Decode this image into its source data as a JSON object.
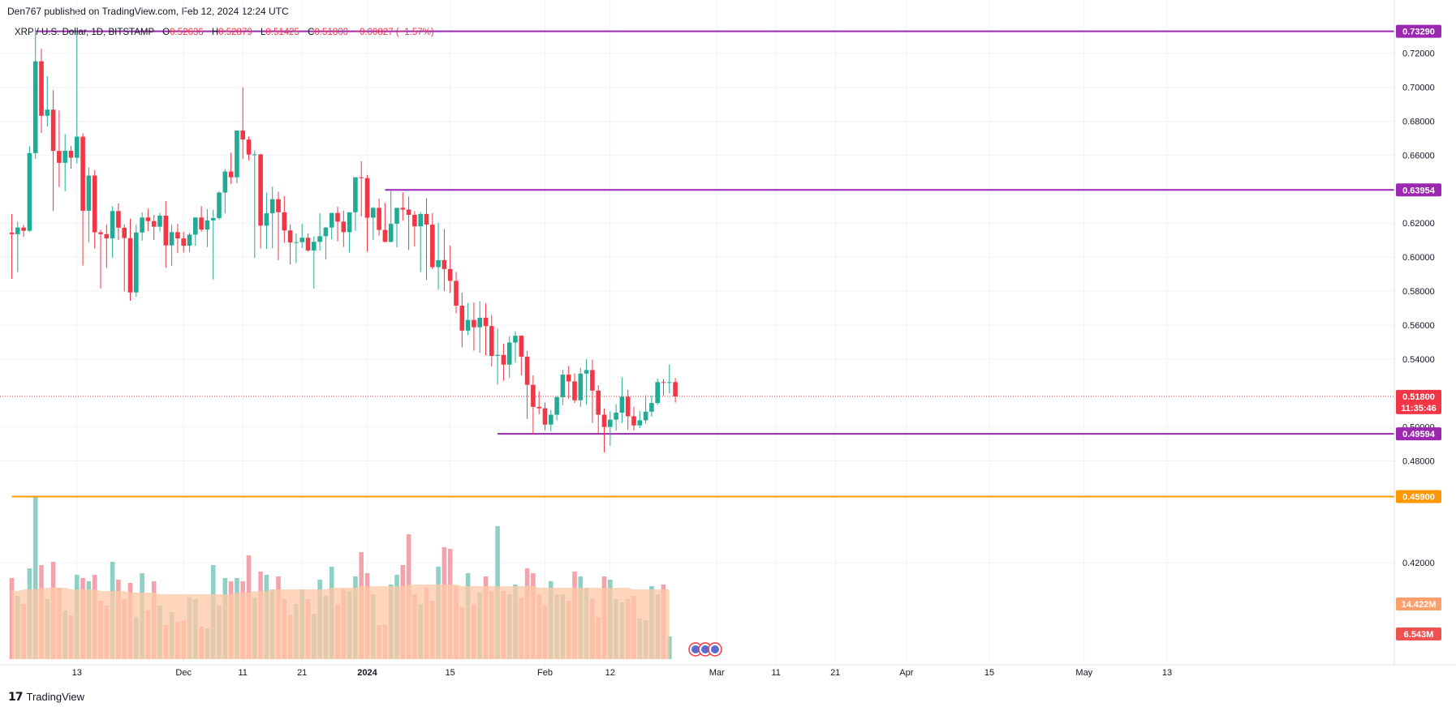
{
  "header": {
    "publisher_line": "Den767 published on TradingView.com, Feb 12, 2024 12:24 UTC"
  },
  "legend": {
    "symbol": "XRP / U.S. Dollar, 1D, BITSTAMP",
    "open_label": "O",
    "open": "0.52636",
    "high_label": "H",
    "high": "0.52879",
    "low_label": "L",
    "low": "0.51425",
    "close_label": "C",
    "close": "0.51800",
    "change": "−0.00827 (−1.57%)"
  },
  "footer": {
    "brand": "TradingView"
  },
  "colors": {
    "up": "#22ab94",
    "down": "#f23645",
    "level": "#9c27b0",
    "support": "#ff9800",
    "volume_up": "#8fd0c6",
    "volume_down": "#f5a3aa",
    "volume_ma": "#ffc8a6"
  },
  "chart_data": {
    "type": "candlestick",
    "x_ticks": [
      "13",
      "Dec",
      "11",
      "21",
      "2024",
      "15",
      "Feb",
      "12",
      "Mar",
      "11",
      "21",
      "Apr",
      "15",
      "May",
      "13"
    ],
    "y_ticks": [
      "0.72000",
      "0.70000",
      "0.68000",
      "0.66000",
      "0.62000",
      "0.60000",
      "0.58000",
      "0.56000",
      "0.54000",
      "0.50000",
      "0.48000",
      "0.42000"
    ],
    "ylim": [
      0.412,
      0.738
    ],
    "price_tags": {
      "top_level": "0.73290",
      "upper_level": "0.63954",
      "current_price": "0.51800",
      "countdown": "11:35:46",
      "lower_level": "0.49594",
      "support_level": "0.45900",
      "volume_ma": "14.422M",
      "volume_last": "6.543M"
    },
    "levels": [
      {
        "price": 0.7329,
        "start_day": 4
      },
      {
        "price": 0.63954,
        "start_day": 63
      },
      {
        "price": 0.49594,
        "start_day": 82
      },
      {
        "price": 0.459,
        "start_day": 0
      }
    ],
    "candles_ohlc": [
      [
        0.6144,
        0.6254,
        0.5873,
        0.6135
      ],
      [
        0.6135,
        0.6208,
        0.5912,
        0.6174
      ],
      [
        0.6174,
        0.619,
        0.612,
        0.6155
      ],
      [
        0.6155,
        0.6652,
        0.615,
        0.6612
      ],
      [
        0.6612,
        0.735,
        0.658,
        0.7153
      ],
      [
        0.7153,
        0.7226,
        0.673,
        0.6832
      ],
      [
        0.6832,
        0.7065,
        0.6768,
        0.6868
      ],
      [
        0.6868,
        0.6983,
        0.6271,
        0.6625
      ],
      [
        0.6625,
        0.6863,
        0.6412,
        0.6555
      ],
      [
        0.6555,
        0.6724,
        0.6388,
        0.6626
      ],
      [
        0.6626,
        0.6654,
        0.652,
        0.6585
      ],
      [
        0.6585,
        0.7335,
        0.6551,
        0.6709
      ],
      [
        0.6709,
        0.6728,
        0.595,
        0.6273
      ],
      [
        0.6273,
        0.6528,
        0.6087,
        0.648
      ],
      [
        0.648,
        0.6512,
        0.605,
        0.6146
      ],
      [
        0.6146,
        0.6161,
        0.5816,
        0.6135
      ],
      [
        0.6135,
        0.6192,
        0.5937,
        0.611
      ],
      [
        0.611,
        0.6299,
        0.5996,
        0.6271
      ],
      [
        0.6271,
        0.6316,
        0.61,
        0.6173
      ],
      [
        0.6173,
        0.6193,
        0.5798,
        0.6112
      ],
      [
        0.6112,
        0.6226,
        0.5743,
        0.5792
      ],
      [
        0.5792,
        0.6191,
        0.5767,
        0.6145
      ],
      [
        0.6145,
        0.6264,
        0.6097,
        0.6233
      ],
      [
        0.6233,
        0.6286,
        0.6152,
        0.6212
      ],
      [
        0.6212,
        0.6249,
        0.6101,
        0.6179
      ],
      [
        0.6179,
        0.626,
        0.6149,
        0.6244
      ],
      [
        0.6244,
        0.633,
        0.5937,
        0.6069
      ],
      [
        0.6069,
        0.619,
        0.5947,
        0.6147
      ],
      [
        0.6147,
        0.6195,
        0.6023,
        0.611
      ],
      [
        0.611,
        0.6149,
        0.6027,
        0.6067
      ],
      [
        0.6067,
        0.6143,
        0.603,
        0.6132
      ],
      [
        0.6132,
        0.6235,
        0.6066,
        0.6233
      ],
      [
        0.6233,
        0.63,
        0.6149,
        0.6162
      ],
      [
        0.6162,
        0.6282,
        0.6059,
        0.6216
      ],
      [
        0.6216,
        0.6279,
        0.5868,
        0.623
      ],
      [
        0.623,
        0.6388,
        0.6221,
        0.638
      ],
      [
        0.638,
        0.6518,
        0.6257,
        0.6504
      ],
      [
        0.6504,
        0.6614,
        0.6431,
        0.647
      ],
      [
        0.647,
        0.6706,
        0.6434,
        0.6745
      ],
      [
        0.6745,
        0.7,
        0.6577,
        0.6692
      ],
      [
        0.6692,
        0.6709,
        0.6569,
        0.6604
      ],
      [
        0.6604,
        0.6628,
        0.5995,
        0.6605
      ],
      [
        0.6605,
        0.6608,
        0.6051,
        0.6185
      ],
      [
        0.6185,
        0.6379,
        0.6048,
        0.6258
      ],
      [
        0.6258,
        0.6415,
        0.6052,
        0.6341
      ],
      [
        0.6341,
        0.6385,
        0.5982,
        0.6264
      ],
      [
        0.6264,
        0.6359,
        0.6085,
        0.6157
      ],
      [
        0.6157,
        0.6193,
        0.5957,
        0.6086
      ],
      [
        0.6086,
        0.614,
        0.5964,
        0.6088
      ],
      [
        0.6088,
        0.6195,
        0.6053,
        0.6114
      ],
      [
        0.6114,
        0.6139,
        0.6033,
        0.6039
      ],
      [
        0.6039,
        0.6121,
        0.5815,
        0.609
      ],
      [
        0.609,
        0.6258,
        0.6039,
        0.6123
      ],
      [
        0.6123,
        0.6178,
        0.5985,
        0.6174
      ],
      [
        0.6174,
        0.6234,
        0.6104,
        0.626
      ],
      [
        0.626,
        0.6297,
        0.6093,
        0.6209
      ],
      [
        0.6209,
        0.6274,
        0.606,
        0.6147
      ],
      [
        0.6147,
        0.6255,
        0.6028,
        0.6264
      ],
      [
        0.6264,
        0.6406,
        0.6154,
        0.647
      ],
      [
        0.647,
        0.6564,
        0.6239,
        0.6465
      ],
      [
        0.6465,
        0.6484,
        0.6032,
        0.6232
      ],
      [
        0.6232,
        0.6295,
        0.6102,
        0.629
      ],
      [
        0.629,
        0.6345,
        0.6126,
        0.616
      ],
      [
        0.616,
        0.6318,
        0.6087,
        0.609
      ],
      [
        0.609,
        0.639,
        0.6087,
        0.6196
      ],
      [
        0.6196,
        0.6281,
        0.6058,
        0.629
      ],
      [
        0.629,
        0.6382,
        0.6214,
        0.628
      ],
      [
        0.628,
        0.6357,
        0.6041,
        0.6249
      ],
      [
        0.6249,
        0.6271,
        0.6062,
        0.6181
      ],
      [
        0.6181,
        0.6266,
        0.5912,
        0.6254
      ],
      [
        0.6254,
        0.6346,
        0.5866,
        0.6191
      ],
      [
        0.6191,
        0.6258,
        0.5929,
        0.5941
      ],
      [
        0.5941,
        0.6201,
        0.5808,
        0.5982
      ],
      [
        0.5982,
        0.6166,
        0.58,
        0.593
      ],
      [
        0.593,
        0.6068,
        0.5789,
        0.586
      ],
      [
        0.586,
        0.5913,
        0.5669,
        0.5714
      ],
      [
        0.5714,
        0.579,
        0.5468,
        0.5567
      ],
      [
        0.5567,
        0.573,
        0.5541,
        0.563
      ],
      [
        0.563,
        0.5732,
        0.5449,
        0.5587
      ],
      [
        0.5587,
        0.574,
        0.5437,
        0.5643
      ],
      [
        0.5643,
        0.5727,
        0.542,
        0.5594
      ],
      [
        0.5594,
        0.5659,
        0.5356,
        0.5418
      ],
      [
        0.5418,
        0.5579,
        0.5249,
        0.5424
      ],
      [
        0.5424,
        0.5491,
        0.5273,
        0.5367
      ],
      [
        0.5367,
        0.5533,
        0.5287,
        0.5497
      ],
      [
        0.5497,
        0.5562,
        0.5379,
        0.5537
      ],
      [
        0.5537,
        0.5539,
        0.5303,
        0.5414
      ],
      [
        0.5414,
        0.5447,
        0.5047,
        0.5248
      ],
      [
        0.5248,
        0.5304,
        0.4956,
        0.5118
      ],
      [
        0.5118,
        0.5209,
        0.5075,
        0.511
      ],
      [
        0.511,
        0.5143,
        0.498,
        0.5014
      ],
      [
        0.5014,
        0.51,
        0.4973,
        0.5072
      ],
      [
        0.5072,
        0.5183,
        0.5038,
        0.5175
      ],
      [
        0.5175,
        0.5336,
        0.5129,
        0.5308
      ],
      [
        0.5308,
        0.5359,
        0.5166,
        0.5268
      ],
      [
        0.5268,
        0.5314,
        0.5141,
        0.5157
      ],
      [
        0.5157,
        0.5348,
        0.5117,
        0.5314
      ],
      [
        0.5314,
        0.5399,
        0.5131,
        0.5335
      ],
      [
        0.5335,
        0.5396,
        0.5023,
        0.5214
      ],
      [
        0.5214,
        0.5246,
        0.4959,
        0.5072
      ],
      [
        0.5072,
        0.5109,
        0.4851,
        0.5
      ],
      [
        0.5,
        0.5092,
        0.4889,
        0.5043
      ],
      [
        0.5043,
        0.5134,
        0.4978,
        0.5084
      ],
      [
        0.5084,
        0.5292,
        0.5024,
        0.5178
      ],
      [
        0.5178,
        0.5218,
        0.4982,
        0.5063
      ],
      [
        0.5063,
        0.5118,
        0.4978,
        0.5009
      ],
      [
        0.5009,
        0.5095,
        0.4993,
        0.5039
      ],
      [
        0.5039,
        0.5187,
        0.5019,
        0.509
      ],
      [
        0.509,
        0.5186,
        0.5062,
        0.5141
      ],
      [
        0.5141,
        0.5285,
        0.5131,
        0.5264
      ],
      [
        0.5264,
        0.5282,
        0.5187,
        0.5259
      ],
      [
        0.5259,
        0.5368,
        0.5198,
        0.5264
      ],
      [
        0.5264,
        0.5288,
        0.5143,
        0.518
      ]
    ],
    "volume_relative": [
      0.5,
      0.39,
      0.34,
      0.56,
      1.0,
      0.58,
      0.37,
      0.6,
      0.44,
      0.3,
      0.27,
      0.52,
      0.5,
      0.48,
      0.52,
      0.36,
      0.33,
      0.6,
      0.49,
      0.37,
      0.47,
      0.26,
      0.53,
      0.3,
      0.48,
      0.33,
      0.21,
      0.29,
      0.23,
      0.24,
      0.38,
      0.37,
      0.2,
      0.19,
      0.58,
      0.33,
      0.5,
      0.48,
      0.5,
      0.48,
      0.64,
      0.38,
      0.54,
      0.52,
      0.43,
      0.51,
      0.37,
      0.27,
      0.34,
      0.43,
      0.37,
      0.28,
      0.49,
      0.39,
      0.57,
      0.34,
      0.43,
      0.42,
      0.51,
      0.66,
      0.53,
      0.4,
      0.21,
      0.21,
      0.46,
      0.52,
      0.58,
      0.77,
      0.4,
      0.34,
      0.44,
      0.36,
      0.57,
      0.69,
      0.68,
      0.45,
      0.32,
      0.53,
      0.34,
      0.41,
      0.51,
      0.42,
      0.82,
      0.42,
      0.4,
      0.46,
      0.38,
      0.56,
      0.53,
      0.4,
      0.33,
      0.48,
      0.4,
      0.4,
      0.36,
      0.54,
      0.51,
      0.44,
      0.37,
      0.26,
      0.51,
      0.49,
      0.37,
      0.35,
      0.37,
      0.39,
      0.25,
      0.24,
      0.45,
      0.4,
      0.46,
      0.14
    ],
    "volume_ma_relative": [
      0.42,
      0.42,
      0.43,
      0.43,
      0.43,
      0.44,
      0.44,
      0.44,
      0.44,
      0.44,
      0.43,
      0.43,
      0.43,
      0.43,
      0.43,
      0.42,
      0.42,
      0.42,
      0.42,
      0.42,
      0.41,
      0.41,
      0.41,
      0.41,
      0.41,
      0.4,
      0.4,
      0.4,
      0.4,
      0.4,
      0.4,
      0.4,
      0.4,
      0.4,
      0.4,
      0.4,
      0.4,
      0.4,
      0.41,
      0.41,
      0.41,
      0.42,
      0.42,
      0.42,
      0.43,
      0.43,
      0.43,
      0.43,
      0.43,
      0.43,
      0.43,
      0.43,
      0.43,
      0.43,
      0.44,
      0.44,
      0.44,
      0.44,
      0.44,
      0.45,
      0.45,
      0.45,
      0.45,
      0.45,
      0.45,
      0.45,
      0.45,
      0.46,
      0.46,
      0.46,
      0.46,
      0.46,
      0.46,
      0.46,
      0.46,
      0.46,
      0.45,
      0.45,
      0.45,
      0.45,
      0.45,
      0.45,
      0.45,
      0.45,
      0.45,
      0.45,
      0.45,
      0.45,
      0.45,
      0.44,
      0.44,
      0.44,
      0.44,
      0.44,
      0.44,
      0.44,
      0.44,
      0.44,
      0.44,
      0.44,
      0.44,
      0.44,
      0.44,
      0.44,
      0.44,
      0.43,
      0.43,
      0.43,
      0.43,
      0.43,
      0.43,
      0.43
    ]
  }
}
